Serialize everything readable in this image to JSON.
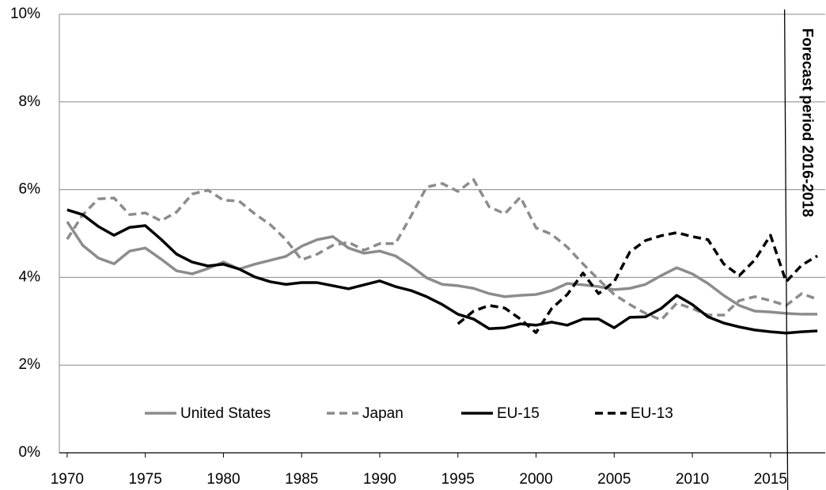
{
  "chart_data": {
    "type": "line",
    "x": [
      1970,
      1971,
      1972,
      1973,
      1974,
      1975,
      1976,
      1977,
      1978,
      1979,
      1980,
      1981,
      1982,
      1983,
      1984,
      1985,
      1986,
      1987,
      1988,
      1989,
      1990,
      1991,
      1992,
      1993,
      1994,
      1995,
      1996,
      1997,
      1998,
      1999,
      2000,
      2001,
      2002,
      2003,
      2004,
      2005,
      2006,
      2007,
      2008,
      2009,
      2010,
      2011,
      2012,
      2013,
      2014,
      2015,
      2016,
      2017,
      2018
    ],
    "series": [
      {
        "name": "United States",
        "color": "#8c8c8c",
        "dashed": false,
        "values": [
          5.27,
          4.73,
          4.44,
          4.31,
          4.6,
          4.67,
          4.42,
          4.15,
          4.08,
          4.2,
          4.35,
          4.19,
          4.3,
          4.39,
          4.48,
          4.71,
          4.86,
          4.93,
          4.67,
          4.55,
          4.6,
          4.49,
          4.26,
          3.99,
          3.84,
          3.81,
          3.75,
          3.63,
          3.56,
          3.59,
          3.61,
          3.7,
          3.86,
          3.83,
          3.79,
          3.72,
          3.75,
          3.84,
          4.04,
          4.22,
          4.08,
          3.86,
          3.59,
          3.36,
          3.23,
          3.21,
          3.18,
          3.16,
          3.16
        ]
      },
      {
        "name": "Japan",
        "color": "#8c8c8c",
        "dashed": true,
        "values": [
          4.87,
          5.43,
          5.79,
          5.81,
          5.43,
          5.47,
          5.29,
          5.49,
          5.9,
          5.99,
          5.76,
          5.74,
          5.45,
          5.2,
          4.86,
          4.4,
          4.53,
          4.73,
          4.8,
          4.62,
          4.77,
          4.77,
          5.4,
          6.06,
          6.14,
          5.96,
          6.23,
          5.61,
          5.45,
          5.83,
          5.13,
          4.98,
          4.69,
          4.31,
          3.95,
          3.61,
          3.38,
          3.18,
          3.03,
          3.41,
          3.29,
          3.14,
          3.14,
          3.47,
          3.56,
          3.47,
          3.36,
          3.63,
          3.5
        ]
      },
      {
        "name": "EU-15",
        "color": "#000000",
        "dashed": false,
        "values": [
          5.54,
          5.43,
          5.16,
          4.96,
          5.14,
          5.18,
          4.87,
          4.53,
          4.35,
          4.26,
          4.3,
          4.19,
          4.01,
          3.9,
          3.84,
          3.88,
          3.88,
          3.81,
          3.74,
          3.83,
          3.92,
          3.79,
          3.7,
          3.56,
          3.38,
          3.16,
          3.05,
          2.83,
          2.85,
          2.94,
          2.91,
          2.98,
          2.91,
          3.05,
          3.05,
          2.85,
          3.09,
          3.1,
          3.29,
          3.59,
          3.38,
          3.1,
          2.96,
          2.87,
          2.8,
          2.76,
          2.73,
          2.76,
          2.78
        ]
      },
      {
        "name": "EU-13",
        "color": "#000000",
        "dashed": true,
        "values": [
          null,
          null,
          null,
          null,
          null,
          null,
          null,
          null,
          null,
          null,
          null,
          null,
          null,
          null,
          null,
          null,
          null,
          null,
          null,
          null,
          null,
          null,
          null,
          null,
          null,
          2.94,
          3.23,
          3.36,
          3.3,
          3.05,
          2.74,
          3.29,
          3.61,
          4.1,
          3.63,
          3.9,
          4.58,
          4.84,
          4.95,
          5.02,
          4.93,
          4.86,
          4.31,
          4.04,
          4.4,
          4.96,
          3.9,
          4.28,
          4.49
        ]
      }
    ],
    "xlim": [
      1969.5,
      2018.5
    ],
    "xticks": [
      1970,
      1975,
      1980,
      1985,
      1990,
      1995,
      2000,
      2005,
      2010,
      2015
    ],
    "ylim": [
      0,
      10
    ],
    "yticks": [
      {
        "value": 0,
        "label": "0%"
      },
      {
        "value": 2,
        "label": "2%"
      },
      {
        "value": 4,
        "label": "4%"
      },
      {
        "value": 6,
        "label": "6%"
      },
      {
        "value": 8,
        "label": "8%"
      },
      {
        "value": 10,
        "label": "10%"
      }
    ],
    "grid": true,
    "legend": "bottom",
    "annotations": [
      {
        "text": "Forecast period 2016-2018",
        "x": 2016
      }
    ]
  }
}
